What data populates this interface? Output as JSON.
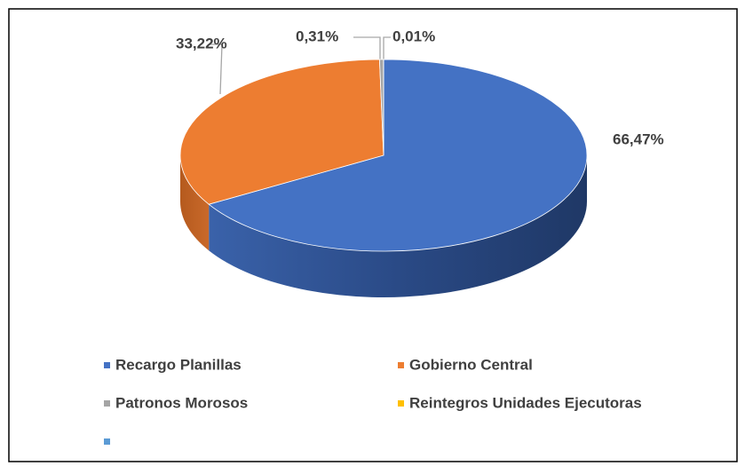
{
  "chart_data": {
    "type": "pie",
    "categories": [
      "Recargo Planillas",
      "Gobierno Central",
      "Patronos Morosos",
      "Reintegros Unidades Ejecutoras",
      null
    ],
    "values": [
      66.47,
      33.22,
      0.31,
      0.01,
      null
    ],
    "value_labels": [
      "66,47%",
      "33,22%",
      "0,31%",
      "0,01%",
      null
    ],
    "colors": [
      "#4472c4",
      "#ed7d31",
      "#a5a5a5",
      "#ffc000",
      "#5b9bd5"
    ],
    "legend": "bottom"
  }
}
